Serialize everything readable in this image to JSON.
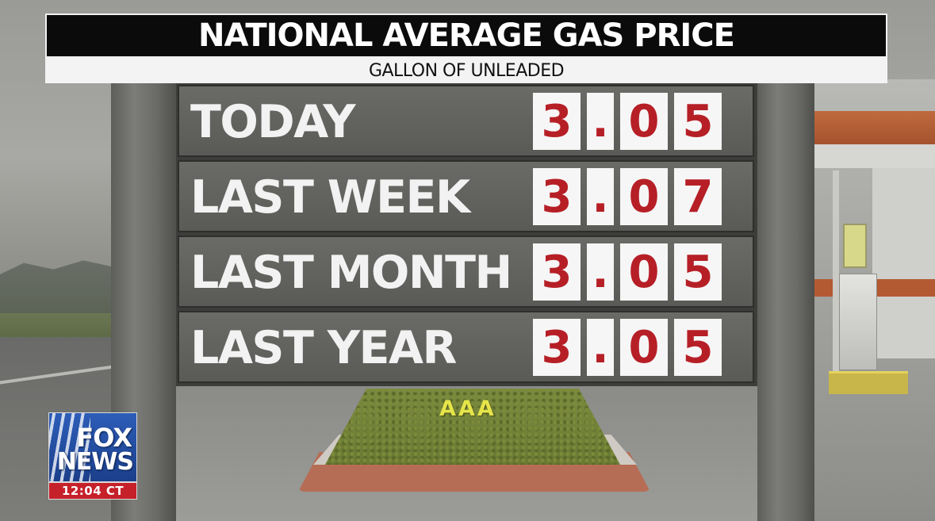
{
  "header": {
    "title": "NATIONAL AVERAGE GAS PRICE",
    "subtitle": "GALLON OF UNLEADED"
  },
  "prices": [
    {
      "label": "TODAY",
      "digits": [
        "3",
        ".",
        "0",
        "5"
      ]
    },
    {
      "label": "LAST WEEK",
      "digits": [
        "3",
        ".",
        "0",
        "7"
      ]
    },
    {
      "label": "LAST MONTH",
      "digits": [
        "3",
        ".",
        "0",
        "5"
      ]
    },
    {
      "label": "LAST YEAR",
      "digits": [
        "3",
        ".",
        "0",
        "5"
      ]
    }
  ],
  "source": "AAA",
  "network": {
    "logo_line1": "FOX",
    "logo_line2": "NEWS",
    "time": "12:04 CT"
  },
  "colors": {
    "price_digit": "#b61f26",
    "banner_background": "#0b0b0b",
    "source_text": "#e5e54a",
    "logo_blue": "#2d5db8",
    "time_red": "#c6202a"
  }
}
